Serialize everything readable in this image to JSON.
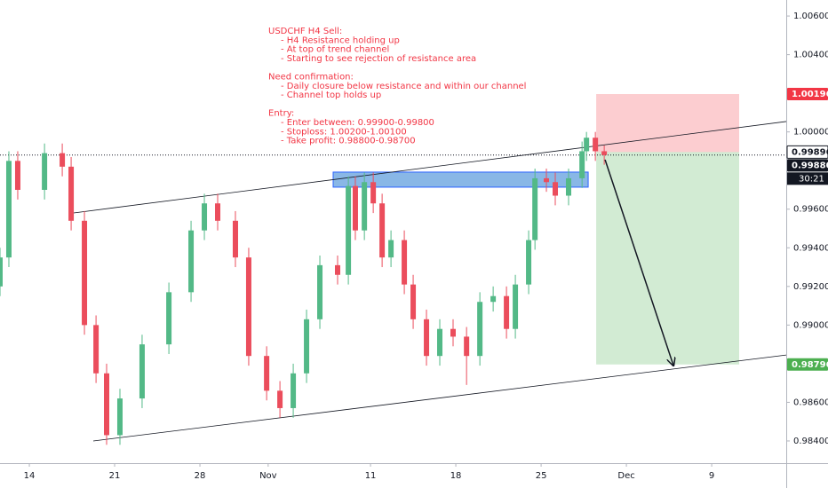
{
  "chart_data": {
    "type": "candlestick",
    "colors": {
      "up": "#53b987",
      "down": "#eb4d5c"
    },
    "x": [
      -1.72,
      -1.2,
      -0.68,
      0.89,
      1.93,
      2.45,
      3.23,
      3.91,
      4.53,
      5.31,
      6.61,
      8.18,
      9.48,
      10.26,
      11.04,
      12.08,
      12.86,
      13.91,
      14.69,
      15.47,
      16.25,
      17.03,
      18.07,
      18.7,
      19.11,
      19.64,
      20.16,
      20.68,
      21.2,
      21.98,
      22.5,
      23.28,
      24.06,
      24.84,
      25.63,
      26.41,
      27.19,
      27.97,
      28.49,
      29.27,
      29.64,
      30.31,
      30.83,
      31.61,
      32.4,
      32.66,
      33.18,
      33.7
    ],
    "open": [
      0.992,
      0.9935,
      0.9985,
      0.997,
      0.9989,
      0.9982,
      0.9954,
      0.99,
      0.9875,
      0.9843,
      0.9862,
      0.989,
      0.9917,
      0.9949,
      0.9963,
      0.9954,
      0.9935,
      0.9884,
      0.9866,
      0.9857,
      0.9875,
      0.9903,
      0.9931,
      0.9926,
      0.9972,
      0.9949,
      0.9974,
      0.9963,
      0.9935,
      0.9944,
      0.9921,
      0.9903,
      0.9884,
      0.9898,
      0.9894,
      0.9884,
      0.9912,
      0.9915,
      0.9898,
      0.9921,
      0.9944,
      0.9976,
      0.9974,
      0.9967,
      0.9976,
      0.999,
      0.9997,
      0.999
    ],
    "high": [
      0.994,
      0.999,
      0.999,
      0.9994,
      0.9994,
      0.9987,
      0.9959,
      0.9905,
      0.988,
      0.9867,
      0.9895,
      0.9922,
      0.9954,
      0.9968,
      0.9968,
      0.9959,
      0.994,
      0.9889,
      0.9871,
      0.988,
      0.9908,
      0.9936,
      0.9936,
      0.9977,
      0.9977,
      0.9979,
      0.9979,
      0.9968,
      0.9949,
      0.9949,
      0.9926,
      0.9908,
      0.9903,
      0.9903,
      0.9899,
      0.9917,
      0.992,
      0.992,
      0.9926,
      0.9949,
      0.9981,
      0.9981,
      0.9979,
      0.9981,
      0.9995,
      1.0,
      1.0,
      0.9993
    ],
    "low": [
      0.9915,
      0.993,
      0.9965,
      0.9965,
      0.9977,
      0.9949,
      0.9895,
      0.987,
      0.9838,
      0.9838,
      0.9857,
      0.9885,
      0.9912,
      0.9944,
      0.9949,
      0.993,
      0.9879,
      0.9861,
      0.9852,
      0.9852,
      0.987,
      0.9898,
      0.9921,
      0.9921,
      0.9944,
      0.9944,
      0.9958,
      0.993,
      0.993,
      0.9916,
      0.9898,
      0.9879,
      0.9879,
      0.9889,
      0.9869,
      0.9879,
      0.9907,
      0.9893,
      0.9893,
      0.9916,
      0.9939,
      0.9969,
      0.9962,
      0.9962,
      0.9971,
      0.9985,
      0.9985,
      0.9983
    ],
    "close": [
      0.9935,
      0.9985,
      0.997,
      0.9989,
      0.9982,
      0.9954,
      0.99,
      0.9875,
      0.9843,
      0.9862,
      0.989,
      0.9917,
      0.9949,
      0.9963,
      0.9954,
      0.9935,
      0.9884,
      0.9866,
      0.9857,
      0.9875,
      0.9903,
      0.9931,
      0.9926,
      0.9972,
      0.9949,
      0.9974,
      0.9963,
      0.9935,
      0.9944,
      0.9921,
      0.9903,
      0.9884,
      0.9898,
      0.9894,
      0.9884,
      0.9912,
      0.9915,
      0.9898,
      0.9921,
      0.9944,
      0.9976,
      0.9974,
      0.9967,
      0.9976,
      0.999,
      0.9997,
      0.999,
      0.9988
    ],
    "xlim": [
      -1.72,
      44.37
    ],
    "ylim": [
      0.98285,
      1.00683
    ],
    "xticks": [
      {
        "value": 0,
        "label": "14"
      },
      {
        "value": 5,
        "label": "21"
      },
      {
        "value": 10,
        "label": "28"
      },
      {
        "value": 14,
        "label": "Nov"
      },
      {
        "value": 20,
        "label": "11"
      },
      {
        "value": 25,
        "label": "18"
      },
      {
        "value": 30,
        "label": "25"
      },
      {
        "value": 35,
        "label": "Dec"
      },
      {
        "value": 40,
        "label": "9"
      }
    ],
    "yticks": [
      {
        "value": 1.006,
        "label": "1.00600"
      },
      {
        "value": 1.004,
        "label": "1.00400"
      },
      {
        "value": 1.0,
        "label": "1.00000"
      },
      {
        "value": 0.996,
        "label": "0.99600"
      },
      {
        "value": 0.994,
        "label": "0.99400"
      },
      {
        "value": 0.992,
        "label": "0.99200"
      },
      {
        "value": 0.99,
        "label": "0.99000"
      },
      {
        "value": 0.986,
        "label": "0.98600"
      },
      {
        "value": 0.984,
        "label": "0.98400"
      }
    ],
    "price_labels": [
      {
        "value": 1.00196,
        "label": "1.00196",
        "color": "#f23645"
      },
      {
        "value": 0.99896,
        "label": "0.99896",
        "color": "#ffffff"
      },
      {
        "value": 0.9988,
        "label": "0.99880",
        "color": "#131722",
        "countdown": "30:21"
      },
      {
        "value": 0.98796,
        "label": "0.98796",
        "color": "#4caf50"
      }
    ],
    "current_price": 0.9988,
    "zone": {
      "x": [
        17.81,
        32.76
      ],
      "y": [
        0.99714,
        0.99792
      ],
      "color": "#4a90d9"
    },
    "position": {
      "x": [
        33.23,
        41.61
      ],
      "entry": 0.99896,
      "stop": 1.00196,
      "target": 0.98796
    },
    "trendlines": [
      {
        "x": [
          2.55,
          44.37
        ],
        "y": [
          0.9958,
          1.00054
        ]
      },
      {
        "x": [
          3.75,
          44.37
        ],
        "y": [
          0.984,
          0.98845
        ]
      }
    ],
    "arrow": {
      "x": [
        33.75,
        37.76
      ],
      "y": [
        0.99856,
        0.9879
      ]
    },
    "annotation": [
      {
        "heading": "USDCHF H4 Sell:",
        "items": [
          "- H4 Resistance holding up",
          "- At top of trend channel",
          "- Starting to see rejection of resistance area"
        ]
      },
      {
        "heading": "Need confirmation:",
        "items": [
          "- Daily closure below resistance and within our channel",
          "- Channel top holds up"
        ]
      },
      {
        "heading": "Entry:",
        "items": [
          "- Enter between: 0.99900-0.99800",
          "- Stoploss: 1.00200-1.00100",
          "- Take profit: 0.98800-0.98700"
        ]
      }
    ]
  }
}
